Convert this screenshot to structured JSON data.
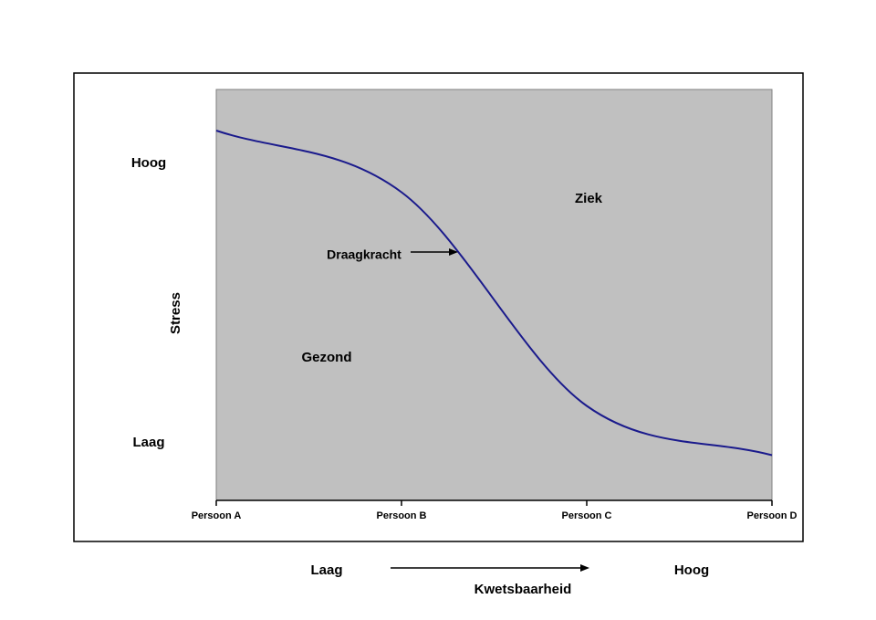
{
  "chart_data": {
    "type": "line",
    "categories": [
      "Persoon A",
      "Persoon B",
      "Persoon C",
      "Persoon D"
    ],
    "series": [
      {
        "name": "Draagkracht",
        "color": "#1a1a8c",
        "values": [
          90,
          75,
          23,
          11
        ]
      }
    ],
    "ylim": [
      0,
      100
    ],
    "yticks": [
      {
        "value": 14,
        "label": "Laag"
      },
      {
        "value": 82,
        "label": "Hoog"
      }
    ],
    "y_label": "Stress",
    "x_label": "Kwetsbaarheid",
    "x_low": "Laag",
    "x_high": "Hoog",
    "annotations": [
      "Ziek",
      "Gezond"
    ],
    "grid": false
  }
}
